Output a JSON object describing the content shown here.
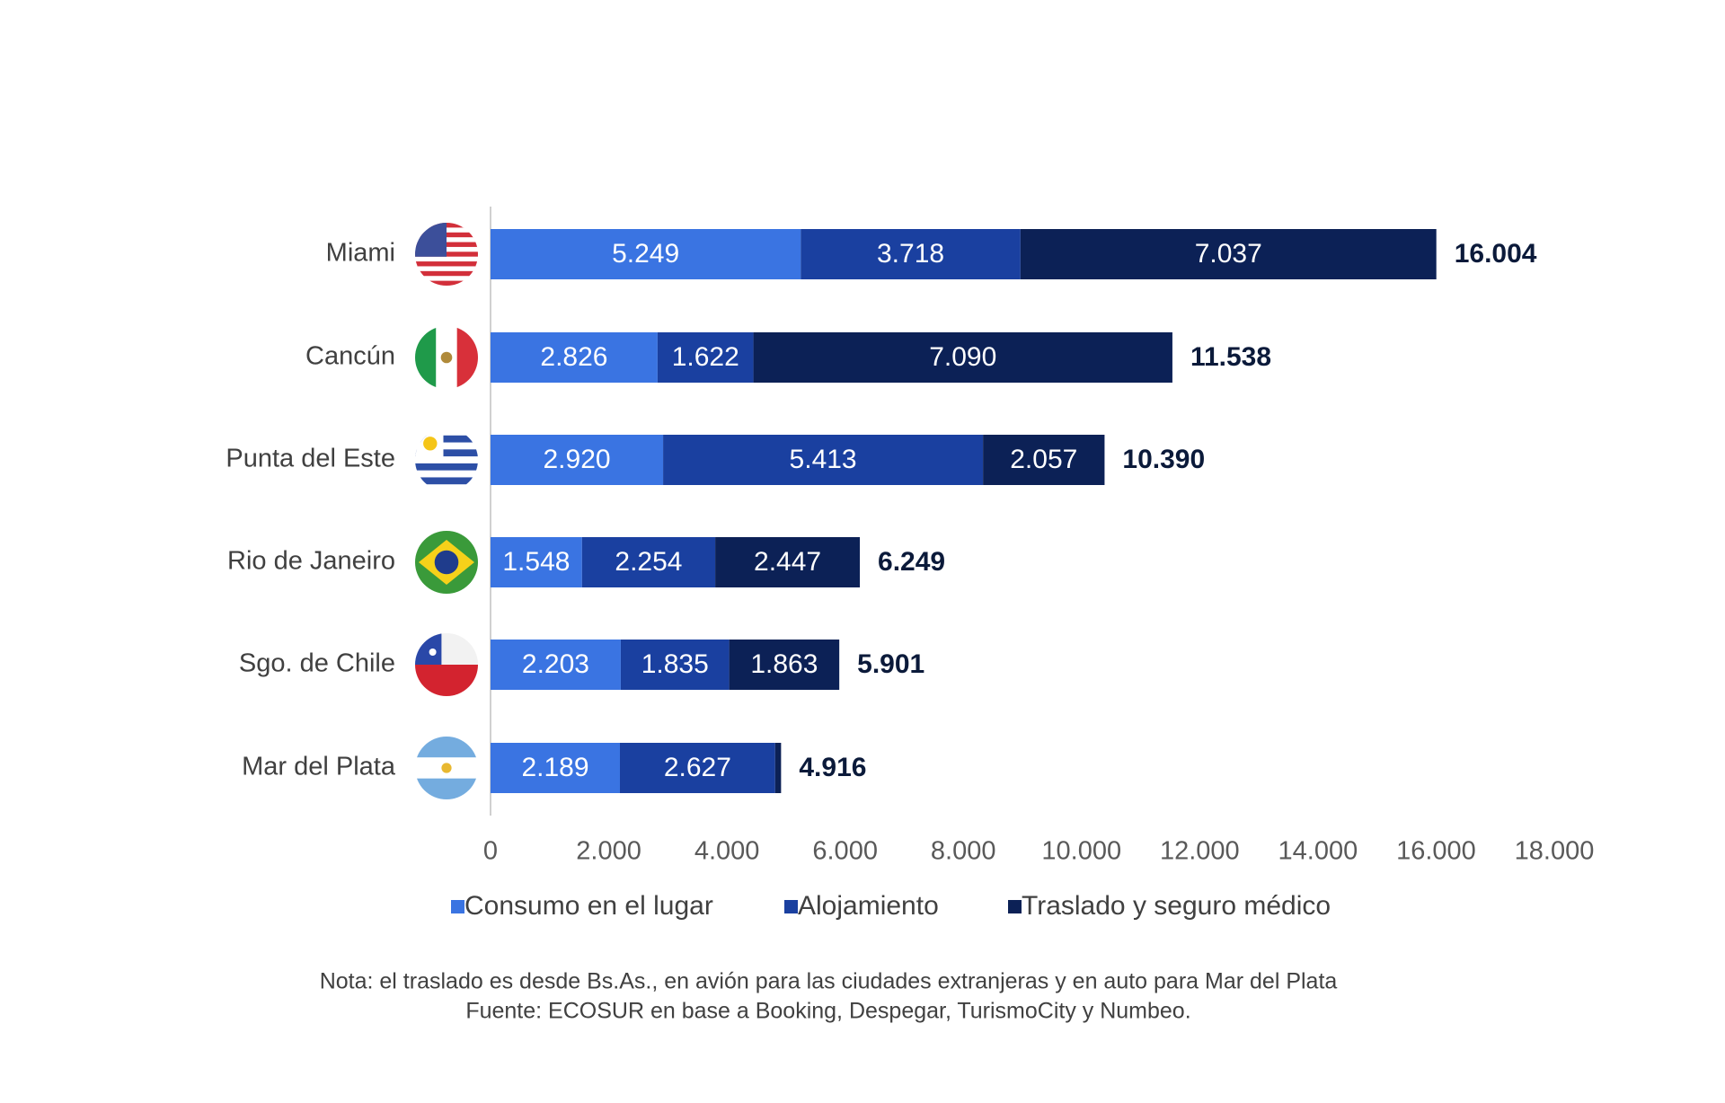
{
  "chart_data": {
    "type": "stacked_barh",
    "categories": [
      "Miami",
      "Cancún",
      "Punta del Este",
      "Rio de Janeiro",
      "Sgo. de Chile",
      "Mar del Plata"
    ],
    "series": [
      {
        "name": "Consumo en el lugar",
        "color": "#3a74e2",
        "values": [
          5249,
          2826,
          2920,
          1548,
          2203,
          2189
        ],
        "value_labels": [
          "5.249",
          "2.826",
          "2.920",
          "1.548",
          "2.203",
          "2.189"
        ]
      },
      {
        "name": "Alojamiento",
        "color": "#1a40a0",
        "values": [
          3718,
          1622,
          5413,
          2254,
          1835,
          2627
        ],
        "value_labels": [
          "3.718",
          "1.622",
          "5.413",
          "2.254",
          "1.835",
          "2.627"
        ]
      },
      {
        "name": "Traslado y seguro médico",
        "color": "#0c2156",
        "values": [
          7037,
          7090,
          2057,
          2447,
          1863,
          100
        ],
        "value_labels": [
          "7.037",
          "7.090",
          "2.057",
          "2.447",
          "1.863",
          null
        ]
      }
    ],
    "totals": {
      "values": [
        16004,
        11538,
        10390,
        6249,
        5901,
        4916
      ],
      "value_labels": [
        "16.004",
        "11.538",
        "10.390",
        "6.249",
        "5.901",
        "4.916"
      ]
    },
    "xlim": [
      0,
      18000
    ],
    "xticks": [
      0,
      {
        "value": 2000,
        "label": "2.000"
      },
      {
        "value": 4000,
        "label": "4.000"
      },
      {
        "value": 6000,
        "label": "6.000"
      },
      {
        "value": 8000,
        "label": "8.000"
      },
      {
        "value": 10000,
        "label": "10.000"
      },
      {
        "value": 12000,
        "label": "12.000"
      },
      {
        "value": 14000,
        "label": "14.000"
      },
      {
        "value": 16000,
        "label": "16.000"
      },
      {
        "value": 18000,
        "label": "18.000"
      }
    ],
    "legend": "bottom",
    "notes": [
      "Nota: el traslado es desde Bs.As., en avión para las ciudades extranjeras y en auto para Mar del Plata",
      "Fuente: ECOSUR en base a Booking, Despegar, TurismoCity y Numbeo."
    ]
  }
}
